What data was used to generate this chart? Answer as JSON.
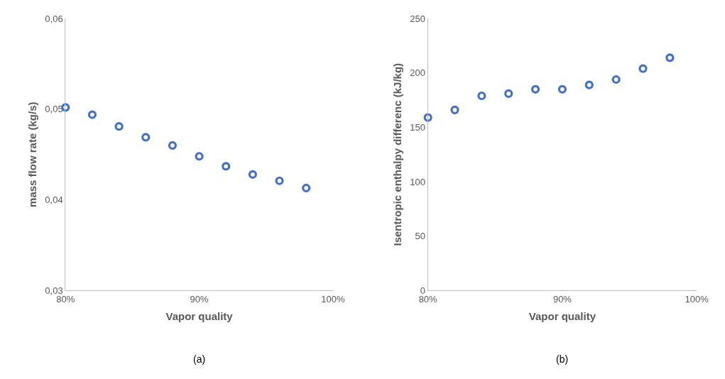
{
  "chart_data": [
    {
      "type": "scatter",
      "xlabel": "Vapor quality",
      "ylabel": "mass flow rate (kg/s)",
      "annotations": [
        "(a)"
      ],
      "x": [
        0.8,
        0.82,
        0.84,
        0.86,
        0.88,
        0.9,
        0.92,
        0.94,
        0.96,
        0.98
      ],
      "series": [
        {
          "color": "#4472c4",
          "values": [
            0.0502,
            0.0494,
            0.0481,
            0.0469,
            0.046,
            0.0448,
            0.0437,
            0.0428,
            0.0421,
            0.0413
          ]
        }
      ],
      "xlim": [
        0.8,
        1.0
      ],
      "xticks": [
        {
          "value": 0.8,
          "label": "80%"
        },
        {
          "value": 0.9,
          "label": "90%"
        },
        {
          "value": 1.0,
          "label": "100%"
        }
      ],
      "ylim": [
        0.03,
        0.06
      ],
      "yticks": [
        {
          "value": 0.03,
          "label": "0,03"
        },
        {
          "value": 0.04,
          "label": "0,04"
        },
        {
          "value": 0.05,
          "label": "0,05"
        },
        {
          "value": 0.06,
          "label": "0,06"
        }
      ],
      "grid": false,
      "marker": "circle"
    },
    {
      "type": "scatter",
      "xlabel": "Vapor quality",
      "ylabel": "Isentropic enthalpy differenc (kJ/kg)",
      "annotations": [
        "(b)"
      ],
      "x": [
        0.8,
        0.82,
        0.84,
        0.86,
        0.88,
        0.9,
        0.92,
        0.94,
        0.96,
        0.98
      ],
      "series": [
        {
          "color": "#4472c4",
          "values": [
            159,
            166,
            179,
            181,
            185,
            185,
            189,
            194,
            204,
            214
          ]
        }
      ],
      "xlim": [
        0.8,
        1.0
      ],
      "xticks": [
        {
          "value": 0.8,
          "label": "80%"
        },
        {
          "value": 0.9,
          "label": "90%"
        },
        {
          "value": 1.0,
          "label": "100%"
        }
      ],
      "ylim": [
        0,
        250
      ],
      "yticks": [
        0,
        50,
        100,
        150,
        200,
        250
      ],
      "grid": false,
      "marker": "circle"
    }
  ]
}
